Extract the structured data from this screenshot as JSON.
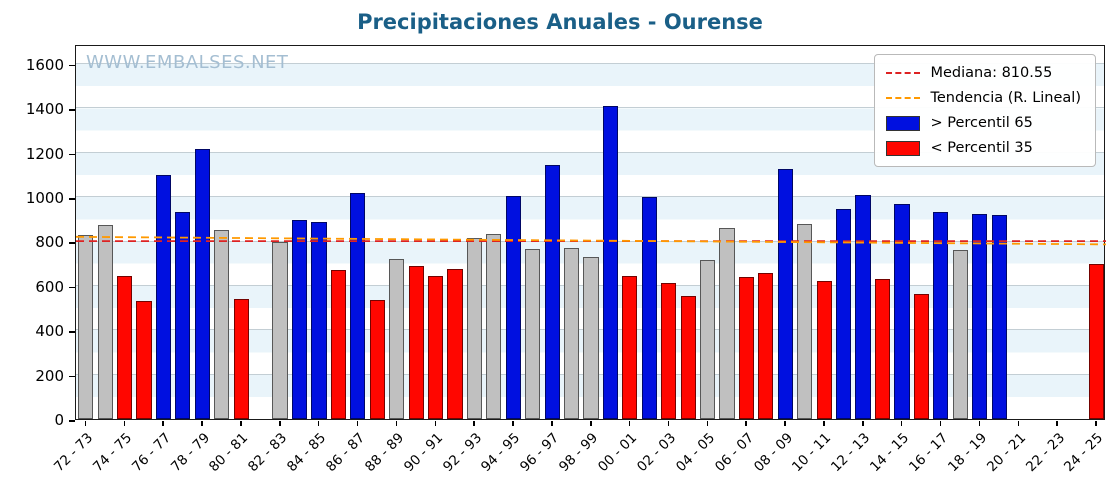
{
  "title": "Precipitaciones Anuales - Ourense",
  "watermark": "WWW.EMBALSES.NET",
  "legend": {
    "median_label": "Mediana: 810.55",
    "trend_label": "Tendencia (R. Lineal)",
    "above_label": "> Percentil 65",
    "below_label": "< Percentil 35"
  },
  "colors": {
    "above": "#0010e0",
    "below": "#ff0600",
    "normal": "#c0c0c0",
    "median_line": "#dd2222",
    "trend_line": "#ff9900",
    "title": "#1a5f87",
    "watermark": "#a4bed2"
  },
  "chart_data": {
    "type": "bar",
    "title": "Precipitaciones Anuales - Ourense",
    "xlabel": "",
    "ylabel": "",
    "ylim": [
      0,
      1690
    ],
    "yticks": [
      0,
      200,
      400,
      600,
      800,
      1000,
      1200,
      1400,
      1600
    ],
    "median": 810.55,
    "trend": {
      "start": 830,
      "end": 796
    },
    "legend_position": "upper right",
    "grid": true,
    "bars": [
      {
        "label": "72 - 73",
        "value": 830,
        "cat": "normal"
      },
      {
        "label": "73 - 74",
        "value": 875,
        "cat": "normal"
      },
      {
        "label": "74 - 75",
        "value": 645,
        "cat": "below"
      },
      {
        "label": "75 - 76",
        "value": 530,
        "cat": "below"
      },
      {
        "label": "76 - 77",
        "value": 1100,
        "cat": "above"
      },
      {
        "label": "77 - 78",
        "value": 935,
        "cat": "above"
      },
      {
        "label": "78 - 79",
        "value": 1215,
        "cat": "above"
      },
      {
        "label": "79 - 80",
        "value": 850,
        "cat": "normal"
      },
      {
        "label": "80 - 81",
        "value": 540,
        "cat": "below"
      },
      {
        "label": "81 - 82",
        "value": null,
        "cat": null
      },
      {
        "label": "82 - 83",
        "value": 800,
        "cat": "normal"
      },
      {
        "label": "83 - 84",
        "value": 895,
        "cat": "above"
      },
      {
        "label": "84 - 85",
        "value": 890,
        "cat": "above"
      },
      {
        "label": "85 - 86",
        "value": 670,
        "cat": "below"
      },
      {
        "label": "86 - 87",
        "value": 1020,
        "cat": "above"
      },
      {
        "label": "87 - 88",
        "value": 535,
        "cat": "below"
      },
      {
        "label": "88 - 89",
        "value": 720,
        "cat": "normal"
      },
      {
        "label": "89 - 90",
        "value": 690,
        "cat": "below"
      },
      {
        "label": "90 - 91",
        "value": 645,
        "cat": "below"
      },
      {
        "label": "91 - 92",
        "value": 675,
        "cat": "below"
      },
      {
        "label": "92 - 93",
        "value": 815,
        "cat": "normal"
      },
      {
        "label": "93 - 94",
        "value": 835,
        "cat": "normal"
      },
      {
        "label": "94 - 95",
        "value": 1005,
        "cat": "above"
      },
      {
        "label": "95 - 96",
        "value": 765,
        "cat": "normal"
      },
      {
        "label": "96 - 97",
        "value": 1145,
        "cat": "above"
      },
      {
        "label": "97 - 98",
        "value": 770,
        "cat": "normal"
      },
      {
        "label": "98 - 99",
        "value": 730,
        "cat": "normal"
      },
      {
        "label": "99 - 00",
        "value": 1410,
        "cat": "above"
      },
      {
        "label": "00 - 01",
        "value": 645,
        "cat": "below"
      },
      {
        "label": "01 - 02",
        "value": 1000,
        "cat": "above"
      },
      {
        "label": "02 - 03",
        "value": 615,
        "cat": "below"
      },
      {
        "label": "03 - 04",
        "value": 555,
        "cat": "below"
      },
      {
        "label": "04 - 05",
        "value": 715,
        "cat": "normal"
      },
      {
        "label": "05 - 06",
        "value": 860,
        "cat": "normal"
      },
      {
        "label": "06 - 07",
        "value": 640,
        "cat": "below"
      },
      {
        "label": "07 - 08",
        "value": 660,
        "cat": "below"
      },
      {
        "label": "08 - 09",
        "value": 1125,
        "cat": "above"
      },
      {
        "label": "09 - 10",
        "value": 880,
        "cat": "normal"
      },
      {
        "label": "10 - 11",
        "value": 620,
        "cat": "below"
      },
      {
        "label": "11 - 12",
        "value": 945,
        "cat": "above"
      },
      {
        "label": "12 - 13",
        "value": 1010,
        "cat": "above"
      },
      {
        "label": "13 - 14",
        "value": 630,
        "cat": "below"
      },
      {
        "label": "14 - 15",
        "value": 970,
        "cat": "above"
      },
      {
        "label": "15 - 16",
        "value": 565,
        "cat": "below"
      },
      {
        "label": "16 - 17",
        "value": 935,
        "cat": "above"
      },
      {
        "label": "17 - 18",
        "value": 760,
        "cat": "normal"
      },
      {
        "label": "18 - 19",
        "value": 925,
        "cat": "above"
      },
      {
        "label": "19 - 20",
        "value": 920,
        "cat": "above"
      },
      {
        "label": "20 - 21",
        "value": null,
        "cat": null
      },
      {
        "label": "21 - 22",
        "value": null,
        "cat": null
      },
      {
        "label": "22 - 23",
        "value": null,
        "cat": null
      },
      {
        "label": "23 - 24",
        "value": null,
        "cat": null
      },
      {
        "label": "24 - 25",
        "value": 700,
        "cat": "below"
      }
    ]
  }
}
